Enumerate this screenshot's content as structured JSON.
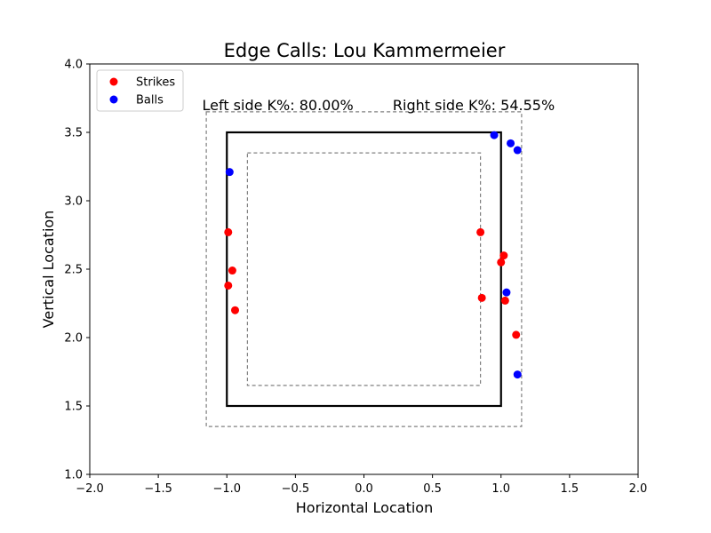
{
  "chart_data": {
    "type": "scatter",
    "title": "Edge Calls: Lou Kammermeier",
    "xlabel": "Horizontal Location",
    "ylabel": "Vertical Location",
    "xlim": [
      -2.0,
      2.0
    ],
    "ylim": [
      1.0,
      4.0
    ],
    "xticks": [
      -2.0,
      -1.5,
      -1.0,
      -0.5,
      0.0,
      0.5,
      1.0,
      1.5,
      2.0
    ],
    "yticks": [
      1.0,
      1.5,
      2.0,
      2.5,
      3.0,
      3.5,
      4.0
    ],
    "xtick_labels": [
      "−2.0",
      "−1.5",
      "−1.0",
      "−0.5",
      "0.0",
      "0.5",
      "1.0",
      "1.5",
      "2.0"
    ],
    "ytick_labels": [
      "1.0",
      "1.5",
      "2.0",
      "2.5",
      "3.0",
      "3.5",
      "4.0"
    ],
    "grid": false,
    "legend_position": "top-left",
    "strike_zone": {
      "x": [
        -1.0,
        1.0
      ],
      "y": [
        1.5,
        3.5
      ]
    },
    "outer_edge": {
      "x": [
        -1.15,
        1.15
      ],
      "y": [
        1.35,
        3.65
      ]
    },
    "inner_edge": {
      "x": [
        -0.85,
        0.85
      ],
      "y": [
        1.65,
        3.35
      ]
    },
    "annotations": [
      {
        "text": "Left side K%: 80.00%",
        "x": -1.18,
        "y": 3.7
      },
      {
        "text": "Right side K%: 54.55%",
        "x": 0.21,
        "y": 3.7
      }
    ],
    "series": [
      {
        "name": "Strikes",
        "color": "#ff0000",
        "points": [
          [
            -0.99,
            2.77
          ],
          [
            -0.96,
            2.49
          ],
          [
            -0.99,
            2.38
          ],
          [
            -0.94,
            2.2
          ],
          [
            0.85,
            2.77
          ],
          [
            1.02,
            2.6
          ],
          [
            1.0,
            2.55
          ],
          [
            0.86,
            2.29
          ],
          [
            1.03,
            2.27
          ],
          [
            1.11,
            2.02
          ]
        ]
      },
      {
        "name": "Balls",
        "color": "#0000ff",
        "points": [
          [
            -0.98,
            3.21
          ],
          [
            0.95,
            3.48
          ],
          [
            1.07,
            3.42
          ],
          [
            1.12,
            3.37
          ],
          [
            1.04,
            2.33
          ],
          [
            1.12,
            1.73
          ]
        ]
      }
    ]
  }
}
